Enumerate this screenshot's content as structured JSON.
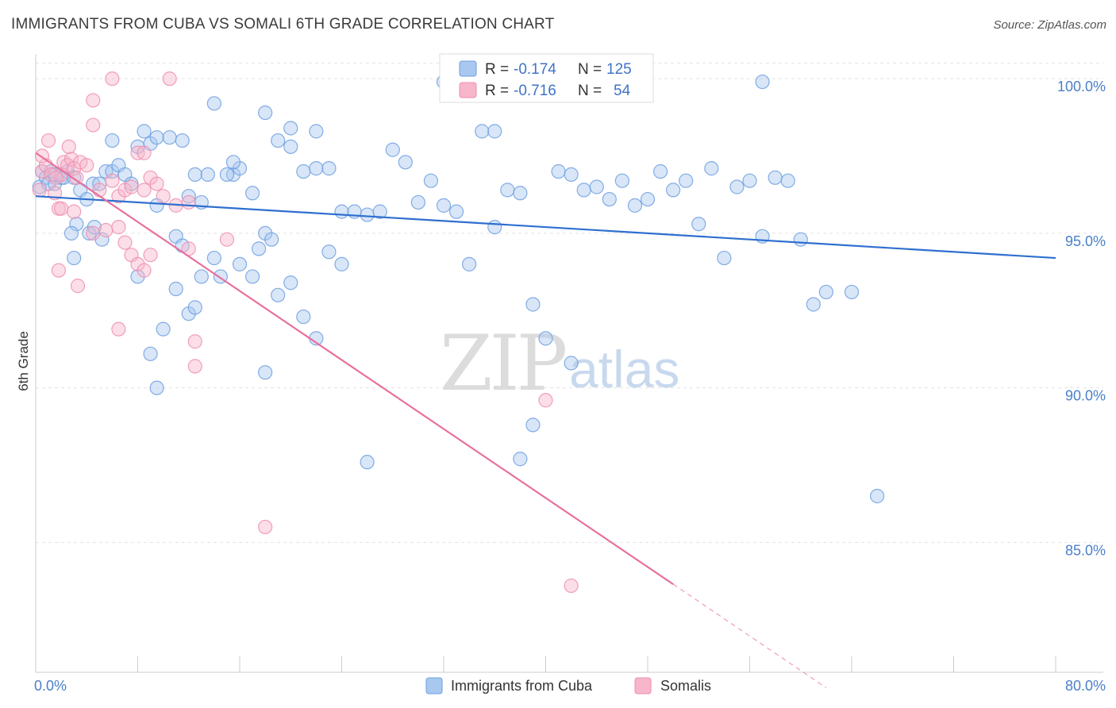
{
  "header": {
    "title": "IMMIGRANTS FROM CUBA VS SOMALI 6TH GRADE CORRELATION CHART",
    "source": "Source: ZipAtlas.com"
  },
  "watermark": {
    "zip": "ZIP",
    "atlas": "atlas"
  },
  "stats": [
    {
      "r_label": "R =",
      "r_value": "-0.174",
      "n_label": "N =",
      "n_value": "125",
      "color": "#a8c8f0"
    },
    {
      "r_label": "R =",
      "r_value": "-0.716",
      "n_label": "N =",
      "n_value": "54",
      "color": "#f7b6c9"
    }
  ],
  "chart_data": {
    "type": "scatter",
    "xlabel": "",
    "ylabel": "6th Grade",
    "xlim": [
      0,
      80
    ],
    "ylim": [
      80.8,
      100.8
    ],
    "x_tick_labels": [
      "0.0%",
      "80.0%"
    ],
    "y_ticks": [
      100,
      95,
      90,
      85
    ],
    "y_tick_labels": [
      "100.0%",
      "95.0%",
      "90.0%",
      "85.0%"
    ],
    "grid": true,
    "legend_position": "bottom-center",
    "series": [
      {
        "name": "Immigrants from Cuba",
        "color": "#a8c8f0",
        "stroke": "#6f9fe0",
        "line_color": "#2f6fcf",
        "trend": {
          "x0": 0,
          "y0": 96.2,
          "x1": 80,
          "y1": 94.2,
          "dash_from": null
        },
        "points": [
          [
            0.3,
            96.5
          ],
          [
            0.5,
            97
          ],
          [
            0.8,
            96.8
          ],
          [
            1,
            96.6
          ],
          [
            1.2,
            97
          ],
          [
            1.5,
            96.6
          ],
          [
            2,
            96.8
          ],
          [
            2.5,
            97
          ],
          [
            1.5,
            96.9
          ],
          [
            2.2,
            96.8
          ],
          [
            3,
            96.8
          ],
          [
            3.5,
            96.4
          ],
          [
            4,
            96.1
          ],
          [
            4.5,
            96.6
          ],
          [
            5,
            96.6
          ],
          [
            5.5,
            97
          ],
          [
            6,
            97
          ],
          [
            6.5,
            97.2
          ],
          [
            7,
            96.9
          ],
          [
            7.5,
            96.6
          ],
          [
            3.2,
            95.3
          ],
          [
            4.2,
            95
          ],
          [
            5.2,
            94.8
          ],
          [
            3,
            94.2
          ],
          [
            2.8,
            95
          ],
          [
            4.6,
            95.2
          ],
          [
            8,
            97.8
          ],
          [
            8.5,
            98.3
          ],
          [
            9,
            97.9
          ],
          [
            9.5,
            98.1
          ],
          [
            10.5,
            98.1
          ],
          [
            11.5,
            98
          ],
          [
            12.5,
            96.9
          ],
          [
            13.5,
            96.9
          ],
          [
            15.5,
            96.9
          ],
          [
            16,
            97.1
          ],
          [
            17,
            96.3
          ],
          [
            15,
            96.9
          ],
          [
            15.5,
            97.3
          ],
          [
            6,
            98
          ],
          [
            9.5,
            95.9
          ],
          [
            8,
            93.6
          ],
          [
            11,
            94.9
          ],
          [
            11.5,
            94.6
          ],
          [
            13,
            93.6
          ],
          [
            14,
            94.2
          ],
          [
            14.5,
            93.6
          ],
          [
            16,
            94
          ],
          [
            17,
            93.6
          ],
          [
            17.5,
            94.5
          ],
          [
            18,
            95
          ],
          [
            18.5,
            94.8
          ],
          [
            12,
            96.2
          ],
          [
            13,
            96
          ],
          [
            11,
            93.2
          ],
          [
            10,
            91.9
          ],
          [
            12,
            92.4
          ],
          [
            12.5,
            92.6
          ],
          [
            9,
            91.1
          ],
          [
            9.5,
            90
          ],
          [
            18,
            90.5
          ],
          [
            19,
            93
          ],
          [
            20,
            93.4
          ],
          [
            21,
            92.3
          ],
          [
            22,
            91.6
          ],
          [
            23,
            94.4
          ],
          [
            24,
            94
          ],
          [
            19,
            98
          ],
          [
            20,
            97.8
          ],
          [
            21,
            97
          ],
          [
            22,
            97.1
          ],
          [
            23,
            97.1
          ],
          [
            24,
            95.7
          ],
          [
            25,
            95.7
          ],
          [
            26,
            95.6
          ],
          [
            27,
            95.7
          ],
          [
            28,
            97.7
          ],
          [
            29,
            97.3
          ],
          [
            30,
            96
          ],
          [
            31,
            96.7
          ],
          [
            32,
            95.9
          ],
          [
            33,
            95.7
          ],
          [
            34,
            94
          ],
          [
            35,
            98.3
          ],
          [
            36,
            95.2
          ],
          [
            37,
            96.4
          ],
          [
            38,
            96.3
          ],
          [
            39,
            92.7
          ],
          [
            40,
            91.6
          ],
          [
            41,
            97
          ],
          [
            42,
            96.9
          ],
          [
            43,
            96.4
          ],
          [
            44,
            96.5
          ],
          [
            45,
            96.1
          ],
          [
            46,
            96.7
          ],
          [
            47,
            95.9
          ],
          [
            48,
            96.1
          ],
          [
            49,
            97
          ],
          [
            50,
            96.4
          ],
          [
            51,
            96.7
          ],
          [
            52,
            95.3
          ],
          [
            53,
            97.1
          ],
          [
            54,
            94.2
          ],
          [
            55,
            96.5
          ],
          [
            56,
            96.7
          ],
          [
            57,
            94.9
          ],
          [
            58,
            96.8
          ],
          [
            59,
            96.7
          ],
          [
            60,
            94.8
          ],
          [
            61,
            92.7
          ],
          [
            62,
            93.1
          ],
          [
            64,
            93.1
          ],
          [
            66,
            86.5
          ],
          [
            18,
            98.9
          ],
          [
            20,
            98.4
          ],
          [
            22,
            98.3
          ],
          [
            14,
            99.2
          ],
          [
            32,
            99.9
          ],
          [
            57,
            99.9
          ],
          [
            36,
            98.3
          ],
          [
            39,
            88.8
          ],
          [
            38,
            87.7
          ],
          [
            42,
            90.8
          ],
          [
            26,
            87.6
          ]
        ]
      },
      {
        "name": "Somalis",
        "color": "#f7b6c9",
        "stroke": "#ef8fb0",
        "line_color": "#e8709e",
        "trend": {
          "x0": 0,
          "y0": 97.6,
          "x1": 62,
          "y1": 80.3,
          "dash_from": 50
        },
        "points": [
          [
            0.3,
            96.4
          ],
          [
            0.5,
            97
          ],
          [
            0.8,
            97.2
          ],
          [
            1,
            98
          ],
          [
            1.2,
            96.9
          ],
          [
            1.5,
            96.3
          ],
          [
            1.8,
            95.8
          ],
          [
            2,
            96.9
          ],
          [
            2.2,
            97.3
          ],
          [
            2.5,
            97.2
          ],
          [
            2.8,
            97.4
          ],
          [
            3,
            97.1
          ],
          [
            3.2,
            96.8
          ],
          [
            3.5,
            97.3
          ],
          [
            0.5,
            97.5
          ],
          [
            1.6,
            96.8
          ],
          [
            2.6,
            97.8
          ],
          [
            4,
            97.2
          ],
          [
            5,
            96.4
          ],
          [
            6,
            96.7
          ],
          [
            6.5,
            96.2
          ],
          [
            7,
            96.4
          ],
          [
            7.5,
            96.5
          ],
          [
            8,
            97.6
          ],
          [
            8.5,
            96.4
          ],
          [
            9,
            96.8
          ],
          [
            9.5,
            96.6
          ],
          [
            10,
            96.2
          ],
          [
            2,
            95.8
          ],
          [
            3,
            95.7
          ],
          [
            4.5,
            95
          ],
          [
            5.5,
            95.1
          ],
          [
            6.5,
            95.2
          ],
          [
            7,
            94.7
          ],
          [
            7.5,
            94.3
          ],
          [
            8,
            94
          ],
          [
            8.5,
            93.8
          ],
          [
            9,
            94.3
          ],
          [
            1.8,
            93.8
          ],
          [
            3.3,
            93.3
          ],
          [
            4.5,
            99.3
          ],
          [
            4.5,
            98.5
          ],
          [
            6,
            100
          ],
          [
            10.5,
            100
          ],
          [
            8.5,
            97.6
          ],
          [
            11,
            95.9
          ],
          [
            12,
            94.5
          ],
          [
            12,
            96
          ],
          [
            12.5,
            91.5
          ],
          [
            12.5,
            90.7
          ],
          [
            15,
            94.8
          ],
          [
            18,
            85.5
          ],
          [
            40,
            89.6
          ],
          [
            42,
            83.6
          ],
          [
            6.5,
            91.9
          ]
        ]
      }
    ]
  }
}
